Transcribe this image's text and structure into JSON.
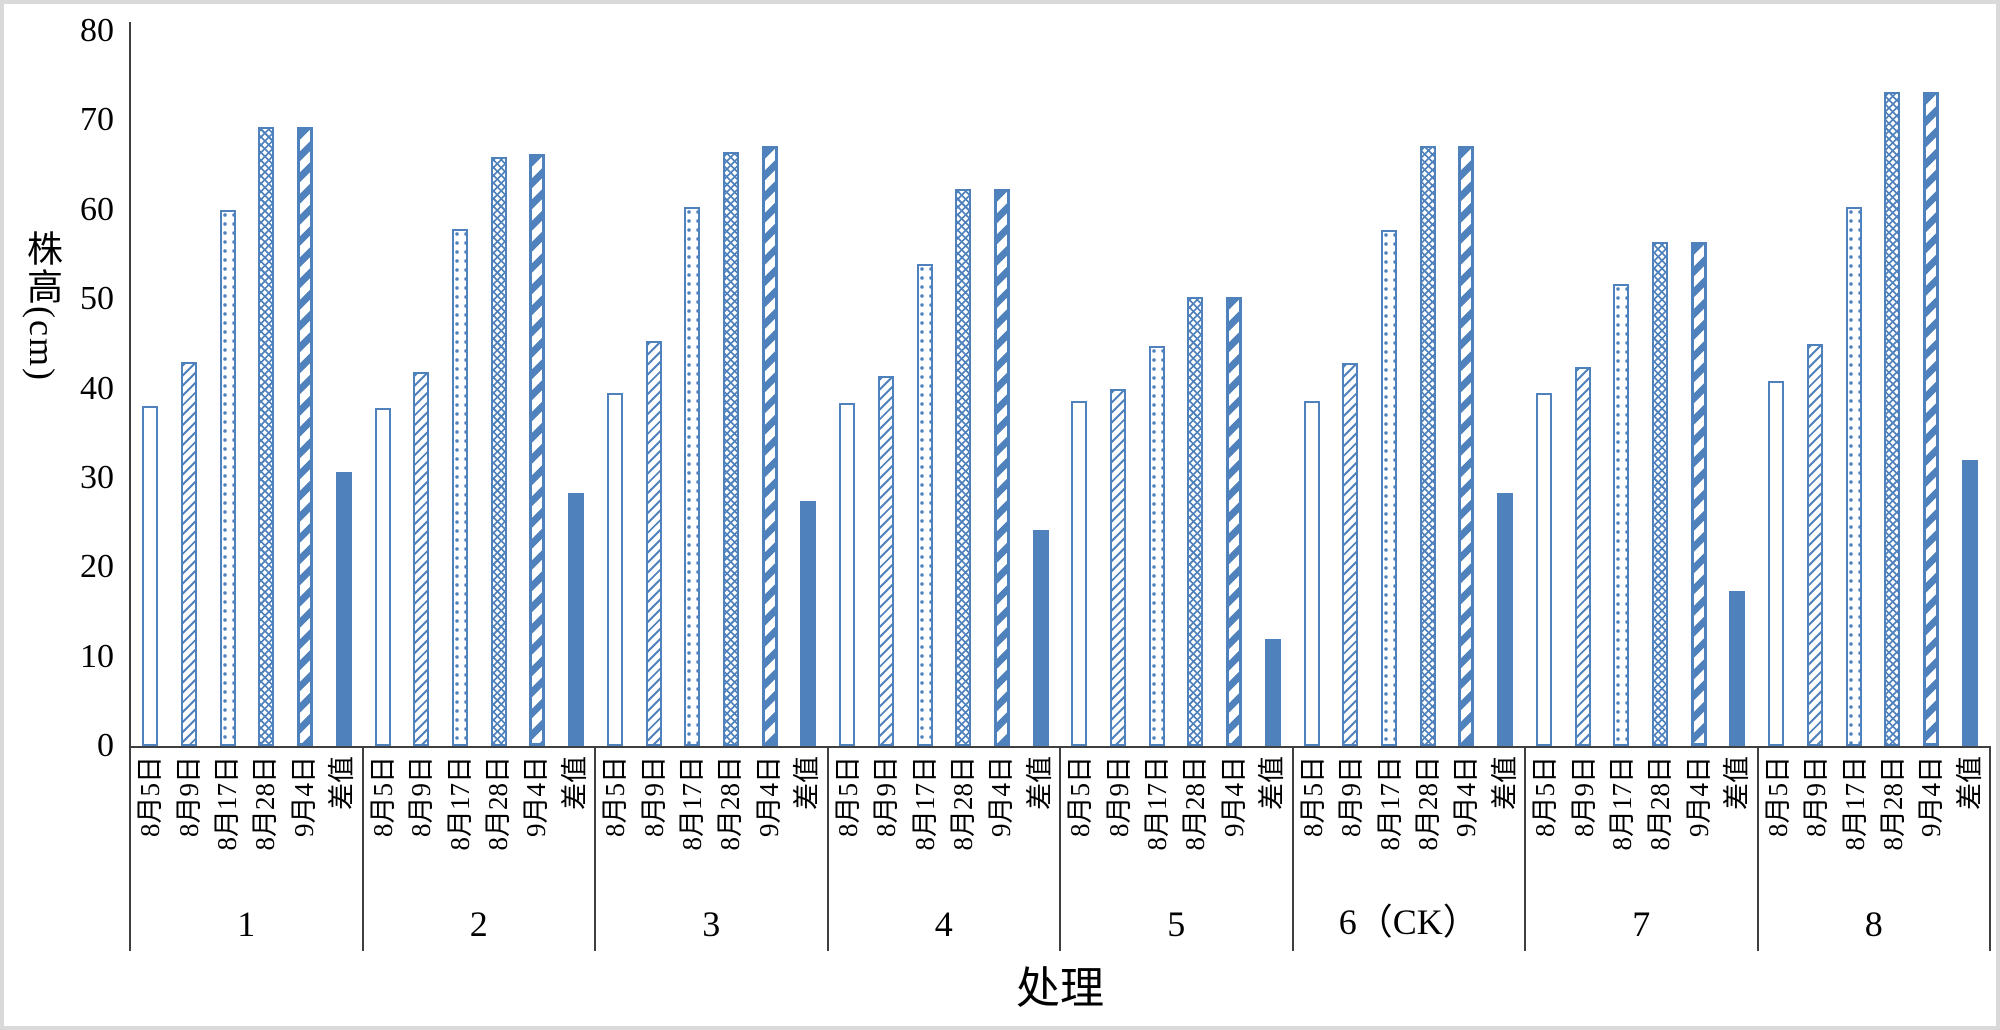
{
  "chart_data": {
    "type": "bar",
    "title": "",
    "ylabel": "株高(cm)",
    "xlabel": "处理",
    "ylim": [
      0,
      80
    ],
    "yticks": [
      0,
      10,
      20,
      30,
      40,
      50,
      60,
      70,
      80
    ],
    "grid": "off",
    "legend": "none",
    "bar_color": "#4F81BD",
    "axis_color": "#3f3f3f",
    "frame_color": "#d9d9d9",
    "categories": [
      "1",
      "2",
      "3",
      "4",
      "5",
      "6（CK）",
      "7",
      "8"
    ],
    "series_labels": [
      "8月5日",
      "8月9日",
      "8月17日",
      "8月28日",
      "9月4日",
      "差值"
    ],
    "series_patterns": [
      "hollow",
      "thin-diagonal-hatch",
      "dots",
      "diamond-grid",
      "wide-diagonal-stripe",
      "solid"
    ],
    "series": [
      {
        "name": "8月5日",
        "values": [
          38.0,
          37.8,
          39.5,
          38.4,
          38.6,
          38.6,
          39.5,
          40.8
        ]
      },
      {
        "name": "8月9日",
        "values": [
          43.0,
          41.8,
          45.3,
          41.4,
          40.0,
          42.8,
          42.4,
          45.0
        ]
      },
      {
        "name": "8月17日",
        "values": [
          60.0,
          57.9,
          60.3,
          53.9,
          44.8,
          57.7,
          51.7,
          60.3
        ]
      },
      {
        "name": "8月28日",
        "values": [
          69.3,
          65.9,
          66.5,
          62.3,
          50.2,
          67.1,
          56.4,
          73.2
        ]
      },
      {
        "name": "9月4日",
        "values": [
          69.3,
          66.2,
          67.1,
          62.3,
          50.2,
          67.1,
          56.4,
          73.2
        ]
      },
      {
        "name": "差值",
        "values": [
          30.7,
          28.3,
          27.4,
          24.2,
          12.0,
          28.3,
          17.4,
          32.0
        ]
      }
    ]
  }
}
